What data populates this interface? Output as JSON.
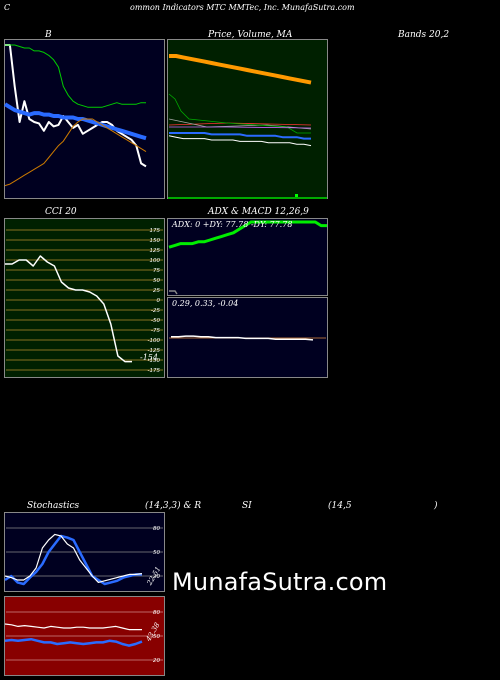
{
  "header": {
    "c": "C",
    "title": "ommon Indicators MTC MMTec, Inc. MunafaSutra.com"
  },
  "labels": {
    "b": "B",
    "price_volume_ma": "Price, Volume, MA",
    "bands": "Bands 20,2",
    "cci": "CCI 20",
    "adx_macd": "ADX  & MACD 12,26,9",
    "adx_readout": "ADX: 0  +DY: 77.78  -DY: 77.78",
    "macd_readout": "0.29,  0.33,  -0.04",
    "cci_last": "-154",
    "stoch_left": "Stochastics",
    "stoch_params": "(14,3,3) & R",
    "stoch_si": "SI",
    "stoch_rsi_params": "(14,5",
    "stoch_close": ")",
    "stoch_last": "22.51",
    "rsi_last": "43.38",
    "watermark": "MunafaSutra.com"
  },
  "chart_data": [
    {
      "type": "line",
      "panel": "bollinger-bands",
      "series": [
        {
          "color": "#ffffff",
          "values": [
            100,
            100,
            72,
            48,
            62,
            50,
            48,
            47,
            42,
            48,
            45,
            46,
            52,
            48,
            44,
            46,
            40,
            42,
            44,
            46,
            48,
            48,
            46,
            42,
            40,
            38,
            36,
            32,
            20,
            18
          ]
        },
        {
          "color": "#2a6bff",
          "values": [
            60,
            58,
            56,
            55,
            54,
            53,
            54,
            54,
            53,
            53,
            52,
            52,
            51,
            51,
            51,
            50,
            50,
            49,
            48,
            47,
            46,
            45,
            44,
            43,
            42,
            41,
            40,
            39,
            38,
            37
          ]
        },
        {
          "color": "#00cc00",
          "values": [
            100,
            100,
            100,
            99,
            98,
            98,
            96,
            96,
            95,
            93,
            90,
            85,
            72,
            66,
            62,
            60,
            59,
            58,
            58,
            58,
            58,
            59,
            60,
            61,
            60,
            60,
            60,
            60,
            61,
            61
          ]
        },
        {
          "color": "#cc7a00",
          "values": [
            5,
            6,
            8,
            10,
            12,
            14,
            16,
            18,
            20,
            24,
            28,
            32,
            35,
            40,
            45,
            48,
            50,
            50,
            50,
            48,
            46,
            44,
            42,
            40,
            38,
            36,
            34,
            32,
            30,
            28
          ]
        }
      ]
    },
    {
      "type": "line",
      "panel": "price-volume-ma",
      "series": [
        {
          "color": "#ff9900",
          "values": [
            95,
            95,
            94,
            93,
            92,
            91,
            90,
            89,
            88,
            87,
            86,
            85,
            84,
            83,
            82,
            81,
            80,
            79,
            78,
            77,
            76
          ]
        },
        {
          "color": "#2a6bff",
          "values": [
            40,
            40,
            40,
            40,
            40,
            40,
            39,
            39,
            39,
            39,
            39,
            38,
            38,
            38,
            38,
            38,
            37,
            37,
            37,
            36,
            36
          ]
        },
        {
          "color": "#ffffff",
          "values": [
            38,
            37,
            36,
            36,
            36,
            36,
            35,
            35,
            35,
            35,
            34,
            34,
            34,
            34,
            33,
            33,
            33,
            33,
            32,
            32,
            31
          ]
        }
      ]
    },
    {
      "type": "line",
      "panel": "cci",
      "ylim": [
        -175,
        175
      ],
      "ticks": [
        175,
        150,
        125,
        100,
        75,
        50,
        25,
        0,
        -25,
        -50,
        -75,
        -100,
        -125,
        -150,
        -175
      ],
      "tick_labels": [
        "175",
        "150",
        "125",
        "100",
        "75",
        "50",
        "25",
        "0",
        "-25",
        "-50",
        "-75",
        "-100",
        "-125",
        "-150",
        "-175"
      ],
      "series": [
        {
          "color": "#ffffff",
          "values": [
            90,
            90,
            100,
            100,
            85,
            110,
            95,
            85,
            45,
            30,
            25,
            25,
            20,
            10,
            -10,
            -60,
            -140,
            -154,
            -154
          ]
        }
      ]
    },
    {
      "type": "line",
      "panel": "adx",
      "series": [
        {
          "color": "#00ee00",
          "values": [
            30,
            35,
            40,
            40,
            40,
            45,
            45,
            50,
            55,
            60,
            65,
            70,
            80,
            90,
            100,
            100,
            100,
            100,
            100,
            100,
            100,
            100,
            100,
            100,
            100,
            100,
            90,
            90
          ]
        }
      ]
    },
    {
      "type": "line",
      "panel": "macd",
      "series": [
        {
          "color": "#ffffff",
          "values": [
            0.33,
            0.33,
            0.34,
            0.34,
            0.33,
            0.33,
            0.32,
            0.32,
            0.32,
            0.32,
            0.31,
            0.31,
            0.31,
            0.31,
            0.3,
            0.3,
            0.3,
            0.3,
            0.3,
            0.29
          ]
        }
      ]
    },
    {
      "type": "line",
      "panel": "stochastics",
      "ticks": [
        80,
        50,
        20
      ],
      "tick_labels": [
        "80",
        "50",
        "20"
      ],
      "series": [
        {
          "color": "#2a6bff",
          "values": [
            15,
            20,
            12,
            10,
            18,
            25,
            35,
            50,
            60,
            70,
            68,
            65,
            50,
            35,
            20,
            15,
            10,
            12,
            14,
            18,
            20,
            22,
            22
          ]
        },
        {
          "color": "#ffffff",
          "values": [
            20,
            18,
            15,
            15,
            20,
            30,
            55,
            65,
            72,
            70,
            60,
            55,
            40,
            30,
            20,
            12,
            14,
            16,
            18,
            20,
            22,
            22,
            23
          ]
        }
      ]
    },
    {
      "type": "line",
      "panel": "rsi",
      "ticks": [
        80,
        50,
        20
      ],
      "tick_labels": [
        "80",
        "50",
        "20"
      ],
      "series": [
        {
          "color": "#ffffff",
          "values": [
            65,
            64,
            62,
            63,
            62,
            61,
            60,
            62,
            61,
            60,
            60,
            61,
            61,
            60,
            60,
            60,
            61,
            62,
            60,
            58,
            58,
            58
          ]
        },
        {
          "color": "#2a6bff",
          "values": [
            44,
            45,
            44,
            45,
            46,
            44,
            42,
            42,
            40,
            41,
            42,
            41,
            40,
            41,
            42,
            42,
            44,
            43,
            40,
            38,
            40,
            43
          ]
        }
      ]
    }
  ]
}
